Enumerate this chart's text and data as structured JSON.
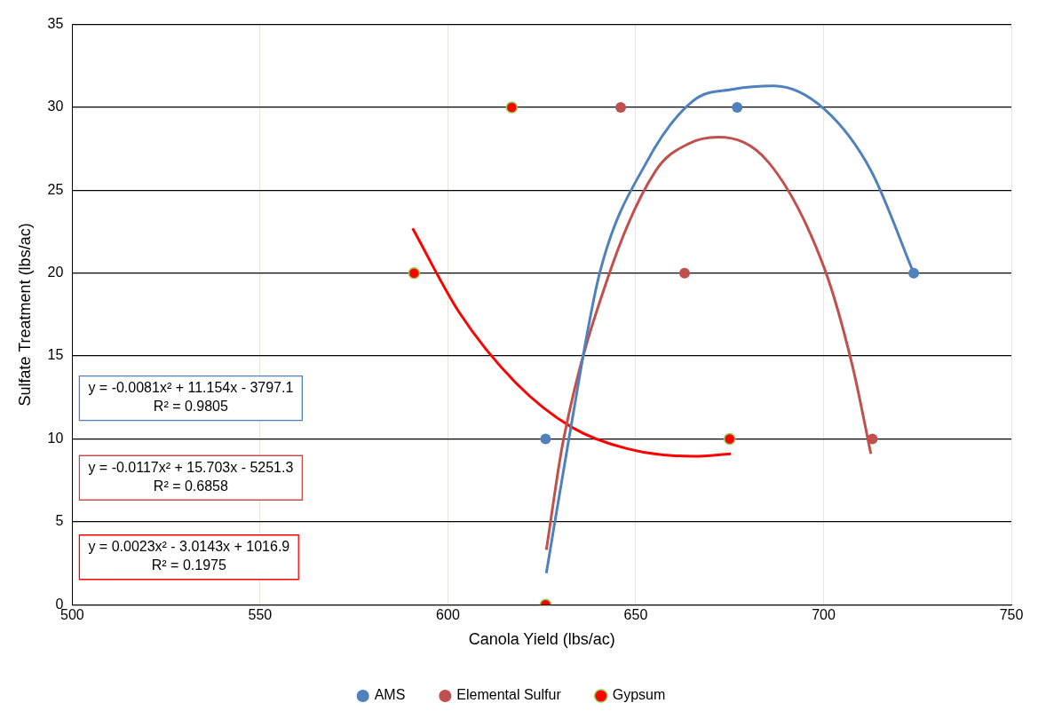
{
  "chart_data": {
    "type": "scatter",
    "xlabel": "Canola Yield (lbs/ac)",
    "ylabel": "Sulfate Treatment (lbs/ac)",
    "xlim": [
      500,
      750
    ],
    "xticks": [
      500,
      550,
      600,
      650,
      700,
      750
    ],
    "ylim": [
      0,
      35
    ],
    "yticks": [
      0,
      5,
      10,
      15,
      20,
      25,
      30,
      35
    ],
    "grid": true,
    "legend": "bottom",
    "marker": "circle",
    "series": [
      {
        "name": "AMS",
        "color": "#4f81bd",
        "x": [
          626,
          677,
          724
        ],
        "values": [
          10,
          30,
          20
        ]
      },
      {
        "name": "Elemental Sulfur",
        "color": "#c0504d",
        "x": [
          646,
          663,
          713
        ],
        "values": [
          30,
          20,
          10
        ]
      },
      {
        "name": "Gypsum",
        "color": "#ff0000",
        "x": [
          617,
          591,
          675,
          626
        ],
        "values": [
          30,
          20,
          10,
          0
        ]
      },
      {
        "type": "line",
        "marker": "none",
        "color": "#4f81bd",
        "x": [
          626.2,
          632.2,
          640.4,
          652.9,
          665.3,
          676,
          686.8,
          700.2,
          712.6,
          724
        ],
        "values": [
          1.9,
          10,
          20,
          26.7,
          30.4,
          31.1,
          31.3,
          29.9,
          26.2,
          20
        ]
      },
      {
        "type": "line",
        "marker": "none",
        "color": "#c0504d",
        "x": [
          626.2,
          630.8,
          643,
          655.4,
          664,
          672,
          685.3,
          700.2,
          707.7,
          712.6
        ],
        "values": [
          3.3,
          10,
          20,
          26.2,
          27.8,
          28.2,
          26.7,
          20.3,
          14.4,
          9.1
        ]
      },
      {
        "type": "line",
        "marker": "none",
        "color": "#ff0000",
        "x": [
          590.6,
          603.1,
          618,
          633,
          647.9,
          665.3,
          675.3
        ],
        "values": [
          22.7,
          17.6,
          13.4,
          10.7,
          9.4,
          8.95,
          9.1
        ]
      }
    ],
    "annotations": [
      "y = -0.0081x² + 11.154x - 3797.1\nR² = 0.9805",
      "y = -0.0117x² + 15.703x - 5251.3\nR² = 0.6858",
      "y = 0.0023x² - 3.0143x + 1016.9\nR² = 0.1975"
    ]
  }
}
